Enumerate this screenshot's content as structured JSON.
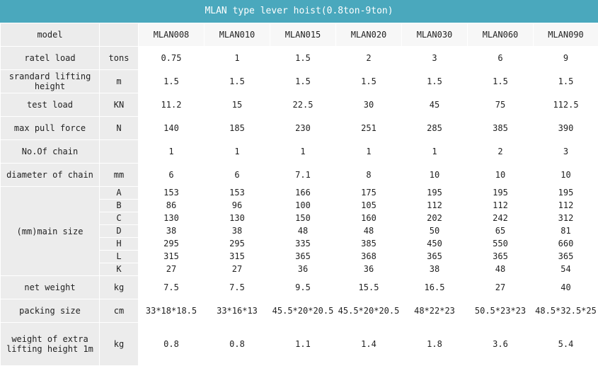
{
  "title": "MLAN type lever hoist(0.8ton-9ton)",
  "header": {
    "label": "model",
    "unit": "",
    "models": [
      "MLAN008",
      "MLAN010",
      "MLAN015",
      "MLAN020",
      "MLAN030",
      "MLAN060",
      "MLAN090"
    ]
  },
  "rows": [
    {
      "label": "ratel load",
      "unit": "tons",
      "values": [
        "0.75",
        "1",
        "1.5",
        "2",
        "3",
        "6",
        "9"
      ]
    },
    {
      "label": "srandard lifting height",
      "unit": "m",
      "values": [
        "1.5",
        "1.5",
        "1.5",
        "1.5",
        "1.5",
        "1.5",
        "1.5"
      ]
    },
    {
      "label": "test load",
      "unit": "KN",
      "values": [
        "11.2",
        "15",
        "22.5",
        "30",
        "45",
        "75",
        "112.5"
      ]
    },
    {
      "label": "max pull force",
      "unit": "N",
      "values": [
        "140",
        "185",
        "230",
        "251",
        "285",
        "385",
        "390"
      ]
    },
    {
      "label": "No.Of chain",
      "unit": "",
      "values": [
        "1",
        "1",
        "1",
        "1",
        "1",
        "2",
        "3"
      ]
    },
    {
      "label": "diameter of chain",
      "unit": "mm",
      "values": [
        "6",
        "6",
        "7.1",
        "8",
        "10",
        "10",
        "10"
      ]
    }
  ],
  "main_size": {
    "label": "(mm)main size",
    "dims": [
      {
        "key": "A",
        "values": [
          "153",
          "153",
          "166",
          "175",
          "195",
          "195",
          "195"
        ]
      },
      {
        "key": "B",
        "values": [
          "86",
          "96",
          "100",
          "105",
          "112",
          "112",
          "112"
        ]
      },
      {
        "key": "C",
        "values": [
          "130",
          "130",
          "150",
          "160",
          "202",
          "242",
          "312"
        ]
      },
      {
        "key": "D",
        "values": [
          "38",
          "38",
          "48",
          "48",
          "50",
          "65",
          "81"
        ]
      },
      {
        "key": "H",
        "values": [
          "295",
          "295",
          "335",
          "385",
          "450",
          "550",
          "660"
        ]
      },
      {
        "key": "L",
        "values": [
          "315",
          "315",
          "365",
          "368",
          "365",
          "365",
          "365"
        ]
      },
      {
        "key": "K",
        "values": [
          "27",
          "27",
          "36",
          "36",
          "38",
          "48",
          "54"
        ]
      }
    ]
  },
  "rows_after": [
    {
      "label": "net weight",
      "unit": "kg",
      "values": [
        "7.5",
        "7.5",
        "9.5",
        "15.5",
        "16.5",
        "27",
        "40"
      ]
    },
    {
      "label": "packing size",
      "unit": "cm",
      "values": [
        "33*18*18.5",
        "33*16*13",
        "45.5*20*20.5",
        "45.5*20*20.5",
        "48*22*23",
        "50.5*23*23",
        "48.5*32.5*25"
      ]
    },
    {
      "label": "weight of extra lifting height 1m",
      "unit": "kg",
      "values": [
        "0.8",
        "0.8",
        "1.1",
        "1.4",
        "1.8",
        "3.6",
        "5.4"
      ]
    }
  ]
}
